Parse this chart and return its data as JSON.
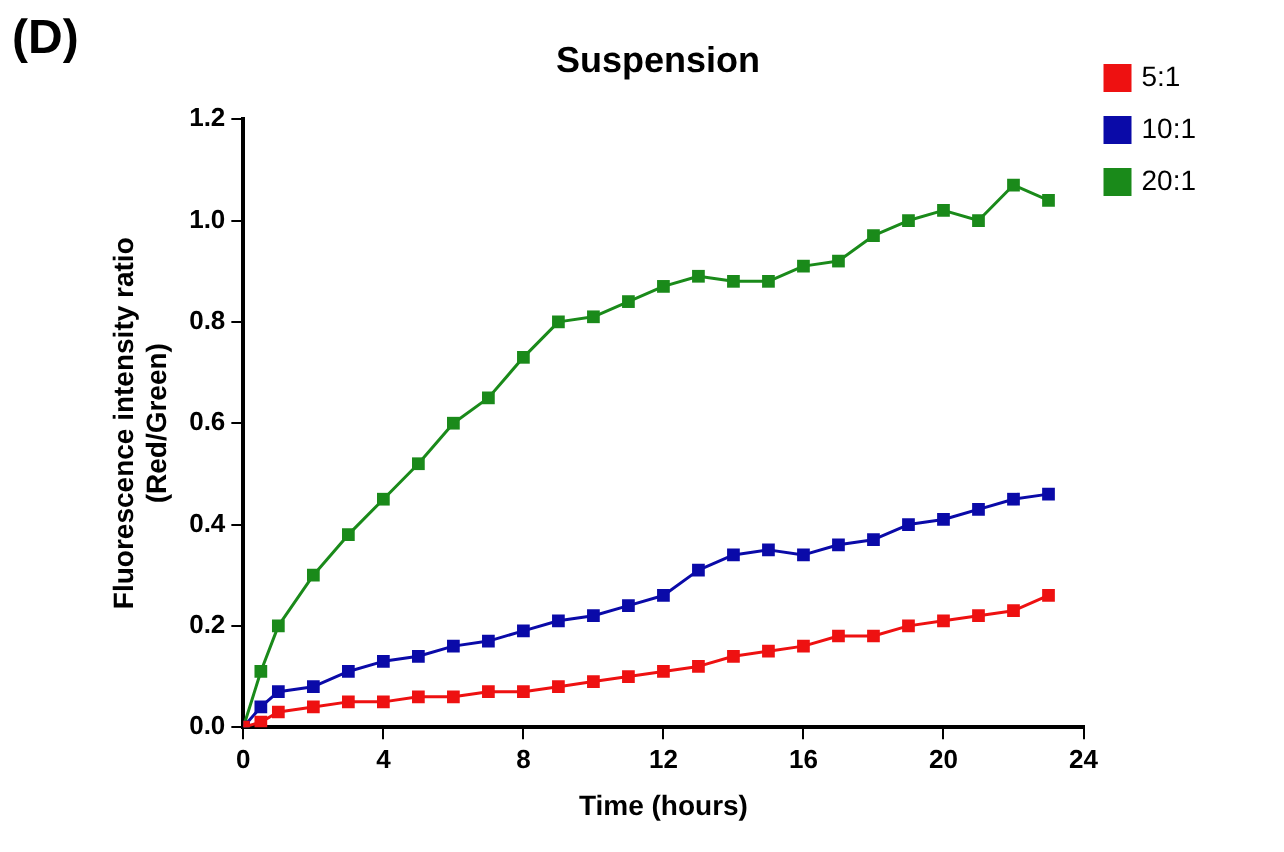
{
  "chart_data": {
    "type": "line",
    "title": "Suspension",
    "xlabel": "Time (hours)",
    "ylabel": "Fluorescence intensity ratio\n(Red/Green)",
    "annotations": [
      "(D)"
    ],
    "x": [
      0,
      0.5,
      1,
      2,
      3,
      4,
      5,
      6,
      7,
      8,
      9,
      10,
      11,
      12,
      13,
      14,
      15,
      16,
      17,
      18,
      19,
      20,
      21,
      22,
      23
    ],
    "series": [
      {
        "name": "5:1",
        "color": "#ee1111",
        "values": [
          0,
          0.01,
          0.03,
          0.04,
          0.05,
          0.05,
          0.06,
          0.06,
          0.07,
          0.07,
          0.08,
          0.09,
          0.1,
          0.11,
          0.12,
          0.14,
          0.15,
          0.16,
          0.18,
          0.18,
          0.2,
          0.21,
          0.22,
          0.23,
          0.26
        ]
      },
      {
        "name": "10:1",
        "color": "#0a0aa8",
        "values": [
          0,
          0.04,
          0.07,
          0.08,
          0.11,
          0.13,
          0.14,
          0.16,
          0.17,
          0.19,
          0.21,
          0.22,
          0.24,
          0.26,
          0.31,
          0.34,
          0.35,
          0.34,
          0.36,
          0.37,
          0.4,
          0.41,
          0.43,
          0.45,
          0.46
        ]
      },
      {
        "name": "20:1",
        "color": "#1a8a1a",
        "values": [
          0,
          0.11,
          0.2,
          0.3,
          0.38,
          0.45,
          0.52,
          0.6,
          0.65,
          0.73,
          0.8,
          0.81,
          0.84,
          0.87,
          0.89,
          0.88,
          0.88,
          0.91,
          0.92,
          0.97,
          1.0,
          1.02,
          1.0,
          1.07,
          1.04
        ]
      }
    ],
    "xlim": [
      0,
      24
    ],
    "xticks": [
      0,
      4,
      8,
      12,
      16,
      20,
      24
    ],
    "ylim": [
      0,
      1.2
    ],
    "yticks": [
      {
        "value": 0,
        "label": "0.0"
      },
      {
        "value": 0.2,
        "label": "0.2"
      },
      {
        "value": 0.4,
        "label": "0.4"
      },
      {
        "value": 0.6,
        "label": "0.6"
      },
      {
        "value": 0.8,
        "label": "0.8"
      },
      {
        "value": 1,
        "label": "1.0"
      },
      {
        "value": 1.2,
        "label": "1.2"
      }
    ],
    "grid": false,
    "legend": "top right",
    "marker": "square",
    "line_style": "solid"
  }
}
